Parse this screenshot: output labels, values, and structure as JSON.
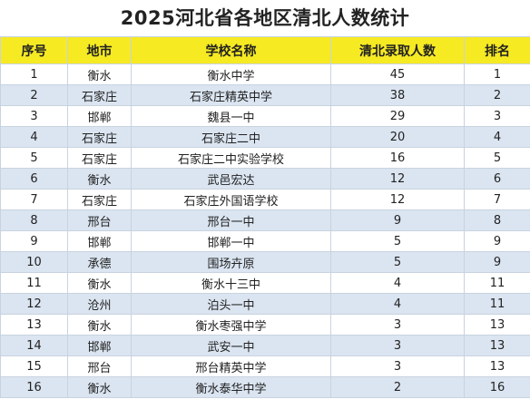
{
  "title": "2025河北省各地区清北人数统计",
  "colors": {
    "header_bg": "#f6ea23",
    "stripe_bg": "#dbe5f1",
    "row_bg": "#ffffff",
    "grid_line": "#c9d3e0"
  },
  "table": {
    "headers": [
      "序号",
      "地市",
      "学校名称",
      "清北录取人数",
      "排名"
    ],
    "rows": [
      {
        "idx": "1",
        "city": "衡水",
        "school": "衡水中学",
        "count": "45",
        "rank": "1"
      },
      {
        "idx": "2",
        "city": "石家庄",
        "school": "石家庄精英中学",
        "count": "38",
        "rank": "2"
      },
      {
        "idx": "3",
        "city": "邯郸",
        "school": "魏县一中",
        "count": "29",
        "rank": "3"
      },
      {
        "idx": "4",
        "city": "石家庄",
        "school": "石家庄二中",
        "count": "20",
        "rank": "4"
      },
      {
        "idx": "5",
        "city": "石家庄",
        "school": "石家庄二中实验学校",
        "count": "16",
        "rank": "5"
      },
      {
        "idx": "6",
        "city": "衡水",
        "school": "武邑宏达",
        "count": "12",
        "rank": "6"
      },
      {
        "idx": "7",
        "city": "石家庄",
        "school": "石家庄外国语学校",
        "count": "12",
        "rank": "7"
      },
      {
        "idx": "8",
        "city": "邢台",
        "school": "邢台一中",
        "count": "9",
        "rank": "8"
      },
      {
        "idx": "9",
        "city": "邯郸",
        "school": "邯郸一中",
        "count": "5",
        "rank": "9"
      },
      {
        "idx": "10",
        "city": "承德",
        "school": "围场卉原",
        "count": "5",
        "rank": "9"
      },
      {
        "idx": "11",
        "city": "衡水",
        "school": "衡水十三中",
        "count": "4",
        "rank": "11"
      },
      {
        "idx": "12",
        "city": "沧州",
        "school": "泊头一中",
        "count": "4",
        "rank": "11"
      },
      {
        "idx": "13",
        "city": "衡水",
        "school": "衡水枣强中学",
        "count": "3",
        "rank": "13"
      },
      {
        "idx": "14",
        "city": "邯郸",
        "school": "武安一中",
        "count": "3",
        "rank": "13"
      },
      {
        "idx": "15",
        "city": "邢台",
        "school": "邢台精英中学",
        "count": "3",
        "rank": "13"
      },
      {
        "idx": "16",
        "city": "衡水",
        "school": "衡水泰华中学",
        "count": "2",
        "rank": "16"
      }
    ]
  }
}
